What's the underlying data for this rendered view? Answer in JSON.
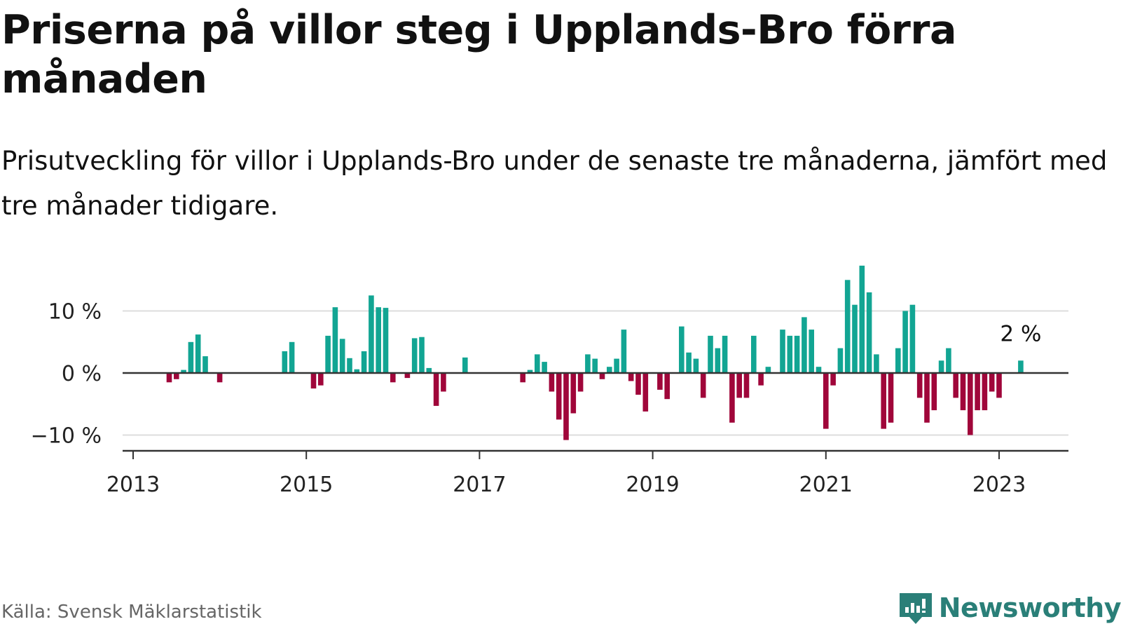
{
  "title": "Priserna på villor steg i Upplands-Bro förra månaden",
  "subtitle": "Prisutveckling för villor i Upplands-Bro under de senaste tre månaderna, jämfört med tre månader tidigare.",
  "source": "Källa: Svensk Mäklarstatistik",
  "brand": {
    "name": "Newsworthy",
    "icon": "newsworthy-logo-icon"
  },
  "colors": {
    "positive": "#12a593",
    "negative": "#a0063a",
    "grid": "#dddddd",
    "axis": "#333333",
    "brand": "#2a7f78"
  },
  "chart_data": {
    "type": "bar",
    "title": "Priserna på villor steg i Upplands-Bro förra månaden",
    "xlabel": "",
    "ylabel": "",
    "unit": "%",
    "start": "2013-01",
    "ylim": [
      -12,
      17
    ],
    "yticks": [
      {
        "value": -10,
        "label": "−10 %"
      },
      {
        "value": 0,
        "label": "0 %"
      },
      {
        "value": 10,
        "label": "10 %"
      }
    ],
    "xticks": [
      {
        "year": 2013,
        "label": "2013"
      },
      {
        "year": 2015,
        "label": "2015"
      },
      {
        "year": 2017,
        "label": "2017"
      },
      {
        "year": 2019,
        "label": "2019"
      },
      {
        "year": 2021,
        "label": "2021"
      },
      {
        "year": 2023,
        "label": "2023"
      }
    ],
    "annotation": {
      "text": "2 %",
      "month_index": 123
    },
    "values": [
      null,
      null,
      null,
      null,
      null,
      -1.5,
      -1,
      0.5,
      5,
      6.2,
      2.7,
      null,
      -1.5,
      null,
      null,
      null,
      null,
      null,
      null,
      null,
      null,
      3.5,
      5,
      null,
      null,
      -2.5,
      -2,
      6,
      10.6,
      5.5,
      2.4,
      0.6,
      3.5,
      12.5,
      10.6,
      10.5,
      -1.5,
      null,
      -0.8,
      5.6,
      5.8,
      0.8,
      -5.3,
      -3,
      null,
      null,
      2.5,
      null,
      null,
      null,
      null,
      null,
      null,
      null,
      -1.5,
      0.5,
      3,
      1.8,
      -3,
      -7.5,
      -10.8,
      -6.5,
      -3,
      3,
      2.3,
      -1,
      1,
      2.3,
      7,
      -1.3,
      -3.5,
      -6.2,
      null,
      -2.7,
      -4.2,
      null,
      7.5,
      3.3,
      2.3,
      -4,
      6,
      4,
      6,
      -8,
      -4,
      -4,
      6,
      -2,
      1,
      null,
      7,
      6,
      6,
      9,
      7,
      1,
      -9,
      -2,
      4,
      15,
      11,
      17.3,
      13,
      3,
      -9,
      -8,
      4,
      10,
      11,
      -4,
      -8,
      -6,
      2,
      4,
      -4,
      -6,
      -10,
      -6,
      -6,
      -3,
      -4,
      null,
      null,
      2
    ]
  }
}
